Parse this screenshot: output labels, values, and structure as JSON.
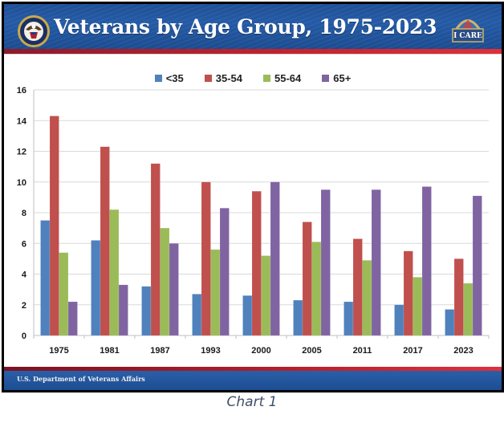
{
  "header": {
    "title": "Veterans by Age Group, 1975-2023",
    "logo_left": "va-seal-icon",
    "logo_right": "i-care-badge-icon",
    "logo_right_text": "I CARE"
  },
  "footer": {
    "text": "U.S. Department of Veterans Affairs"
  },
  "caption": "Chart 1",
  "colors": {
    "header_blue": "#245aa6",
    "stripe_red": "#c5242f"
  },
  "chart_data": {
    "type": "bar",
    "title": "Veterans by Age Group, 1975-2023",
    "xlabel": "",
    "ylabel": "",
    "categories": [
      "1975",
      "1981",
      "1987",
      "1993",
      "2000",
      "2005",
      "2011",
      "2017",
      "2023"
    ],
    "series": [
      {
        "name": "<35",
        "color": "#4F81BD",
        "values": [
          7.5,
          6.2,
          3.2,
          2.7,
          2.6,
          2.3,
          2.2,
          2.0,
          1.7
        ]
      },
      {
        "name": "35-54",
        "color": "#C0504D",
        "values": [
          14.3,
          12.3,
          11.2,
          10.0,
          9.4,
          7.4,
          6.3,
          5.5,
          5.0
        ]
      },
      {
        "name": "55-64",
        "color": "#9BBB59",
        "values": [
          5.4,
          8.2,
          7.0,
          5.6,
          5.2,
          6.1,
          4.9,
          3.8,
          3.4
        ]
      },
      {
        "name": "65+",
        "color": "#8064A2",
        "values": [
          2.2,
          3.3,
          6.0,
          8.3,
          10.0,
          9.5,
          9.5,
          9.7,
          9.1
        ]
      }
    ],
    "ylim": [
      0,
      16
    ],
    "yticks": [
      "0",
      "2",
      "4",
      "6",
      "8",
      "10",
      "12",
      "14",
      "16"
    ],
    "grid": true,
    "legend": "top-center"
  }
}
